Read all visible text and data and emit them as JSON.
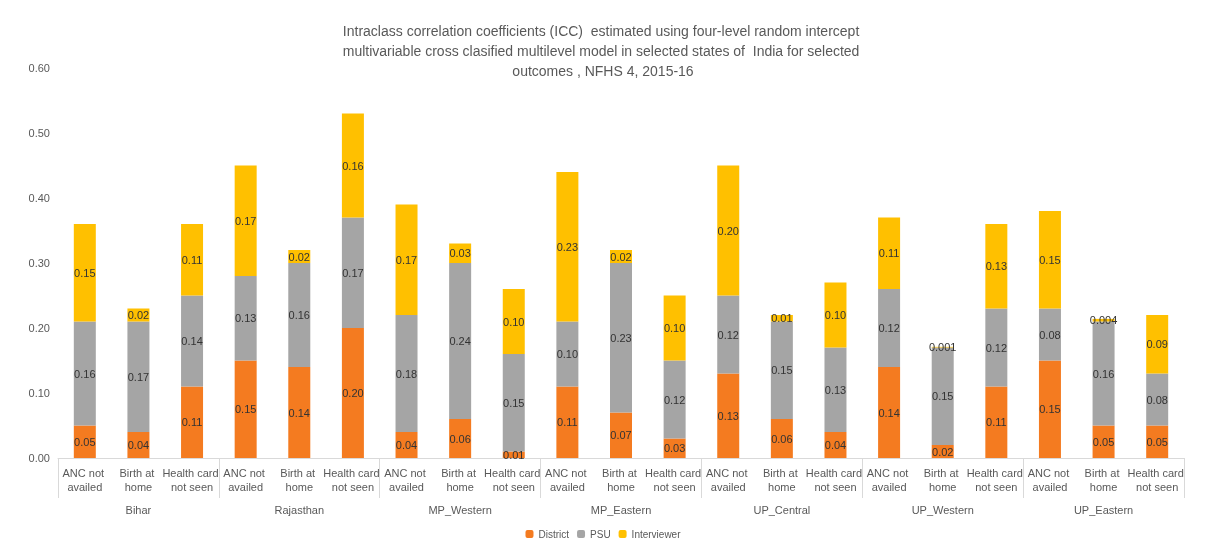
{
  "chart_data": {
    "type": "bar",
    "stacked": true,
    "title": "Intraclass correlation coefficients (ICC)  estimated using four-level random intercept multivariable cross clasified multilevel model in selected states of  India for selected outcomes , NFHS 4, 2015-16",
    "categories": [
      "ANC not availed",
      "Birth at home",
      "Health card not seen",
      "ANC not availed",
      "Birth at home",
      "Health card not seen",
      "ANC not availed",
      "Birth at home",
      "Health card not seen",
      "ANC not availed",
      "Birth at home",
      "Health card not seen",
      "ANC not availed",
      "Birth at home",
      "Health card not seen",
      "ANC not availed",
      "Birth at home",
      "Health card not seen",
      "ANC not availed",
      "Birth at home",
      "Health card not seen"
    ],
    "annotations": [
      "Bihar",
      "Rajasthan",
      "MP_Western",
      "MP_Eastern",
      "UP_Central",
      "UP_Western",
      "UP_Eastern"
    ],
    "series": [
      {
        "name": "District",
        "color": "#f47b20",
        "values": [
          0.05,
          0.04,
          0.11,
          0.15,
          0.14,
          0.2,
          0.04,
          0.06,
          0.01,
          0.11,
          0.07,
          0.03,
          0.13,
          0.06,
          0.04,
          0.14,
          0.02,
          0.11,
          0.15,
          0.05,
          0.05
        ],
        "value_labels": [
          "0.05",
          "0.04",
          "0.11",
          "0.15",
          "0.14",
          "0.20",
          "0.04",
          "0.06",
          "0.01",
          "0.11",
          "0.07",
          "0.03",
          "0.13",
          "0.06",
          "0.04",
          "0.14",
          "0.02",
          "0.11",
          "0.15",
          "0.05",
          "0.05"
        ]
      },
      {
        "name": "PSU",
        "color": "#a5a5a5",
        "values": [
          0.16,
          0.17,
          0.14,
          0.13,
          0.16,
          0.17,
          0.18,
          0.24,
          0.15,
          0.1,
          0.23,
          0.12,
          0.12,
          0.15,
          0.13,
          0.12,
          0.15,
          0.12,
          0.08,
          0.16,
          0.08
        ],
        "value_labels": [
          "0.16",
          "0.17",
          "0.14",
          "0.13",
          "0.16",
          "0.17",
          "0.18",
          "0.24",
          "0.15",
          "0.10",
          "0.23",
          "0.12",
          "0.12",
          "0.15",
          "0.13",
          "0.12",
          "0.15",
          "0.12",
          "0.08",
          "0.16",
          "0.08"
        ]
      },
      {
        "name": "Interviewer",
        "color": "#ffc000",
        "values": [
          0.15,
          0.02,
          0.11,
          0.17,
          0.02,
          0.16,
          0.17,
          0.03,
          0.1,
          0.23,
          0.02,
          0.1,
          0.2,
          0.01,
          0.1,
          0.11,
          0.001,
          0.13,
          0.15,
          0.004,
          0.09
        ],
        "value_labels": [
          "0.15",
          "0.02",
          "0.11",
          "0.17",
          "0.02",
          "0.16",
          "0.17",
          "0.03",
          "0.10",
          "0.23",
          "0.02",
          "0.10",
          "0.20",
          "0.01",
          "0.10",
          "0.11",
          "0.001",
          "0.13",
          "0.15",
          "0.004",
          "0.09"
        ]
      }
    ],
    "ylim": [
      0,
      0.6
    ],
    "yticks": [
      {
        "value": 0,
        "label": "0.00"
      },
      {
        "value": 0.1,
        "label": "0.10"
      },
      {
        "value": 0.2,
        "label": "0.20"
      },
      {
        "value": 0.3,
        "label": "0.30"
      },
      {
        "value": 0.4,
        "label": "0.40"
      },
      {
        "value": 0.5,
        "label": "0.50"
      },
      {
        "value": 0.6,
        "label": "0.60"
      }
    ],
    "grid": false,
    "legend": "bottom"
  }
}
